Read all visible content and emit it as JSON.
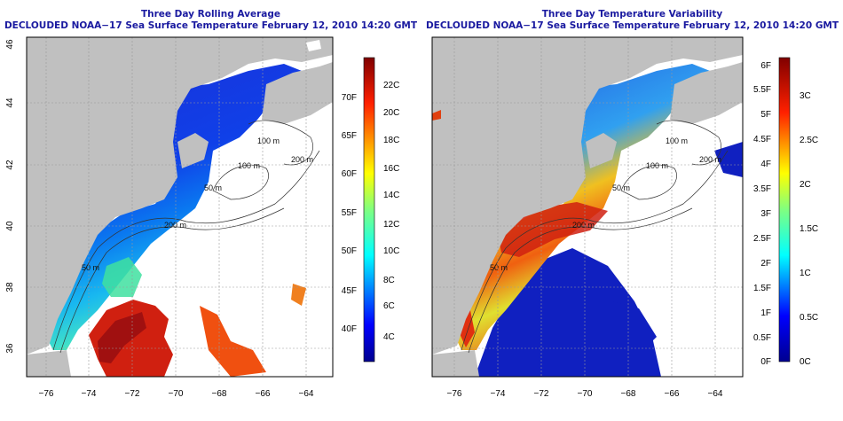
{
  "left_panel": {
    "title_line1": "Three Day Rolling Average",
    "title_line2": "DECLOUDED NOAA−17 Sea Surface Temperature February 12, 2010 14:20 GMT",
    "x_ticks": [
      "−76",
      "−74",
      "−72",
      "−70",
      "−68",
      "−66",
      "−64"
    ],
    "y_ticks": [
      "36",
      "38",
      "40",
      "42",
      "44",
      "46"
    ],
    "colorbar_f": [
      "40F",
      "45F",
      "50F",
      "55F",
      "60F",
      "65F",
      "70F"
    ],
    "colorbar_c": [
      "4C",
      "6C",
      "8C",
      "10C",
      "12C",
      "14C",
      "16C",
      "18C",
      "20C",
      "22C"
    ],
    "contours": [
      "100 m",
      "200 m",
      "100 m",
      "50 m",
      "200 m",
      "50 m"
    ]
  },
  "right_panel": {
    "title_line1": "Three Day Temperature Variability",
    "title_line2": "DECLOUDED NOAA−17 Sea Surface Temperature February 12, 2010 14:20 GMT",
    "x_ticks": [
      "−76",
      "−74",
      "−72",
      "−70",
      "−68",
      "−66",
      "−64"
    ],
    "y_ticks": [
      "36",
      "38",
      "40",
      "42",
      "44",
      "46"
    ],
    "colorbar_f": [
      "0F",
      "0.5F",
      "1F",
      "1.5F",
      "2F",
      "2.5F",
      "3F",
      "3.5F",
      "4F",
      "4.5F",
      "5F",
      "5.5F",
      "6F"
    ],
    "colorbar_c": [
      "0C",
      "0.5C",
      "1C",
      "1.5C",
      "2C",
      "2.5C",
      "3C"
    ],
    "contours": [
      "100 m",
      "200 m",
      "100 m",
      "50 m",
      "200 m",
      "50 m"
    ]
  },
  "colors": {
    "land": "#c0c0c0",
    "title": "#1a1aa0",
    "cold": "#1030d0",
    "warm": "#c01010"
  }
}
